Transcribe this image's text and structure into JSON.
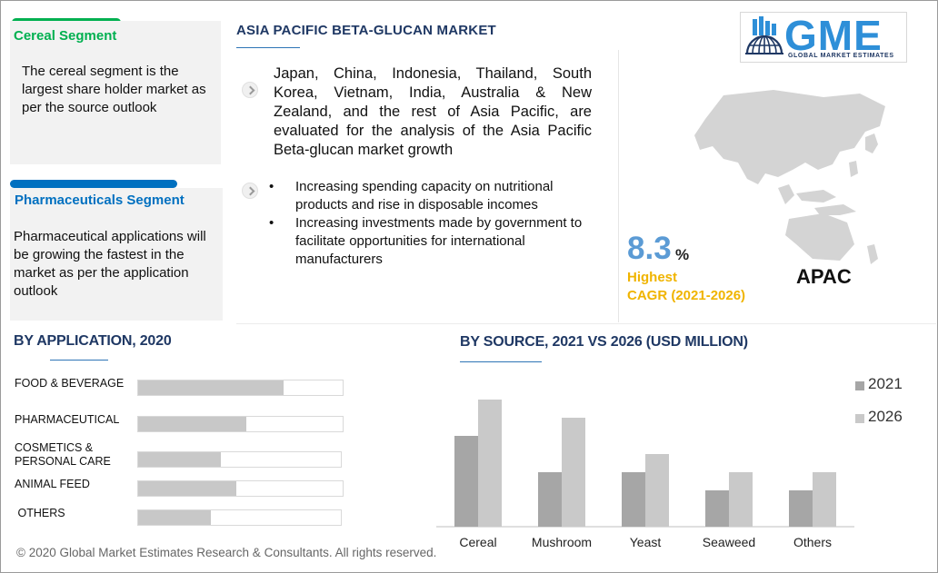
{
  "segments": {
    "cereal": {
      "title": "Cereal Segment",
      "text": "The cereal segment is the largest share holder market as per the source outlook",
      "color": "#00b050"
    },
    "pharma": {
      "title": "Pharmaceuticals Segment",
      "text": "Pharmaceutical applications will be growing the fastest in the market as per the application outlook",
      "color": "#0070c0"
    }
  },
  "header": {
    "title": "ASIA PACIFIC BETA-GLUCAN  MARKET",
    "paragraph": "Japan, China, Indonesia, Thailand, South Korea, Vietnam, India, Australia & New Zealand, and the rest of Asia Pacific, are evaluated for the analysis of the Asia Pacific Beta-glucan market  growth",
    "bullets": [
      "Increasing spending capacity on nutritional products and rise in disposable incomes",
      "Increasing investments made by government to facilitate opportunities for international manufacturers"
    ]
  },
  "logo": {
    "text": "GME",
    "subtitle": "GLOBAL MARKET ESTIMATES"
  },
  "cagr": {
    "value": "8.3",
    "unit": "%",
    "label_line1": "Highest",
    "label_line2": "CAGR (2021-2026)",
    "region": "APAC"
  },
  "chart_data": [
    {
      "type": "bar",
      "orientation": "horizontal",
      "title": "BY APPLICATION, 2020",
      "categories": [
        "FOOD & BEVERAGE",
        "PHARMACEUTICAL",
        "COSMETICS & PERSONAL CARE",
        "ANIMAL FEED",
        "OTHERS"
      ],
      "category_lines": [
        [
          "FOOD & BEVERAGE"
        ],
        [
          "PHARMACEUTICAL"
        ],
        [
          "COSMETICS &",
          "PERSONAL CARE"
        ],
        [
          "ANIMAL FEED"
        ],
        [
          " OTHERS"
        ]
      ],
      "values": [
        0.71,
        0.53,
        0.41,
        0.48,
        0.36
      ],
      "value_scale": "fraction of bar track",
      "color": "#c8c8c8"
    },
    {
      "type": "bar",
      "title": "BY SOURCE, 2021 VS 2026 (USD MILLION)",
      "categories": [
        "Cereal",
        "Mushroom",
        "Yeast",
        "Seaweed",
        "Others"
      ],
      "series": [
        {
          "name": "2021",
          "values": [
            5.0,
            3.0,
            3.0,
            2.0,
            2.0
          ],
          "color": "#a6a6a6"
        },
        {
          "name": "2026",
          "values": [
            7.0,
            6.0,
            4.0,
            3.0,
            3.0
          ],
          "color": "#c9c9c9"
        }
      ],
      "ylim": [
        0,
        7.5
      ],
      "legend": "top-right",
      "grid": false
    }
  ],
  "footer": {
    "copyright": "© 2020 Global Market Estimates Research & Consultants. All rights reserved."
  }
}
